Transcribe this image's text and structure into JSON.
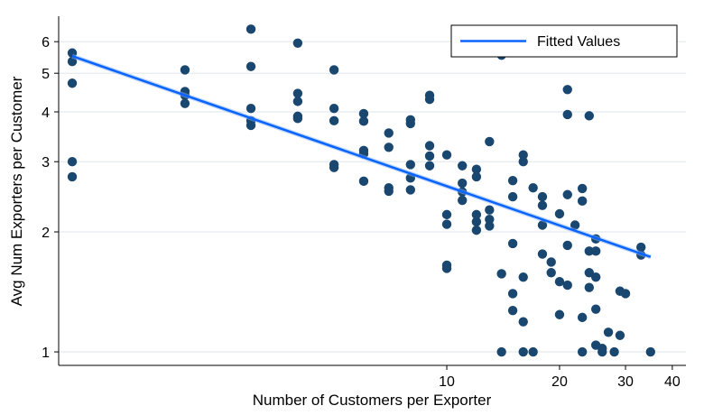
{
  "chart_data": {
    "type": "scatter",
    "title": "",
    "xlabel": "Number of Customers per Exporter",
    "ylabel": "Avg Num Exporters per Customer",
    "xscale": "log",
    "yscale": "log",
    "xlim": [
      0.92,
      43.5
    ],
    "ylim": [
      0.925,
      6.95
    ],
    "xticks": [
      10,
      20,
      30,
      40
    ],
    "xtick_labels": [
      "10",
      "20",
      "30",
      "40"
    ],
    "yticks": [
      1,
      2,
      3,
      4,
      5,
      6
    ],
    "ytick_labels": [
      "1",
      "2",
      "3",
      "4",
      "5",
      "6"
    ],
    "grid": "horizontal",
    "legend": {
      "position": "top-right",
      "entries": [
        "Fitted Values"
      ]
    },
    "colors": {
      "points": "#1a476f",
      "fit": "#0a64ff",
      "grid": "#e8eef2"
    },
    "points": [
      [
        1,
        5.62
      ],
      [
        1,
        5.35
      ],
      [
        1,
        4.72
      ],
      [
        1,
        3.0
      ],
      [
        1,
        2.75
      ],
      [
        2,
        5.1
      ],
      [
        2,
        4.5
      ],
      [
        2,
        4.4
      ],
      [
        2,
        4.2
      ],
      [
        3,
        6.45
      ],
      [
        3,
        5.2
      ],
      [
        3,
        4.08
      ],
      [
        3,
        3.8
      ],
      [
        3,
        3.7
      ],
      [
        4,
        5.95
      ],
      [
        4,
        4.45
      ],
      [
        4,
        4.25
      ],
      [
        4,
        3.9
      ],
      [
        4,
        3.85
      ],
      [
        5,
        5.1
      ],
      [
        5,
        4.08
      ],
      [
        5,
        3.8
      ],
      [
        5,
        2.95
      ],
      [
        5,
        2.9
      ],
      [
        6,
        3.96
      ],
      [
        6,
        3.79
      ],
      [
        6,
        3.2
      ],
      [
        6,
        3.14
      ],
      [
        6,
        2.68
      ],
      [
        7,
        3.54
      ],
      [
        7,
        3.26
      ],
      [
        7,
        2.58
      ],
      [
        7,
        2.53
      ],
      [
        8,
        3.82
      ],
      [
        8,
        3.74
      ],
      [
        8,
        2.95
      ],
      [
        8,
        2.73
      ],
      [
        8,
        2.55
      ],
      [
        9,
        4.4
      ],
      [
        9,
        4.3
      ],
      [
        9,
        3.29
      ],
      [
        9,
        3.1
      ],
      [
        9,
        2.93
      ],
      [
        10,
        3.12
      ],
      [
        10,
        2.21
      ],
      [
        10,
        2.09
      ],
      [
        10,
        1.65
      ],
      [
        10,
        1.62
      ],
      [
        11,
        2.93
      ],
      [
        11,
        2.65
      ],
      [
        11,
        2.52
      ],
      [
        11,
        2.4
      ],
      [
        12,
        2.87
      ],
      [
        12,
        2.75
      ],
      [
        12,
        2.21
      ],
      [
        12,
        2.12
      ],
      [
        12,
        2.02
      ],
      [
        13,
        3.37
      ],
      [
        13,
        2.27
      ],
      [
        13,
        2.15
      ],
      [
        13,
        2.07
      ],
      [
        14,
        5.55
      ],
      [
        14,
        1.57
      ],
      [
        14,
        1.0
      ],
      [
        15,
        2.69
      ],
      [
        15,
        2.45
      ],
      [
        15,
        1.87
      ],
      [
        15,
        1.4
      ],
      [
        15,
        1.27
      ],
      [
        16,
        3.12
      ],
      [
        16,
        3.0
      ],
      [
        16,
        1.54
      ],
      [
        16,
        1.19
      ],
      [
        16,
        1.0
      ],
      [
        17,
        2.58
      ],
      [
        17,
        1.0
      ],
      [
        18,
        2.45
      ],
      [
        18,
        2.33
      ],
      [
        18,
        2.08
      ],
      [
        18,
        1.76
      ],
      [
        19,
        1.68
      ],
      [
        19,
        1.58
      ],
      [
        20,
        2.22
      ],
      [
        20,
        1.5
      ],
      [
        20,
        1.24
      ],
      [
        21,
        4.55
      ],
      [
        21,
        3.94
      ],
      [
        21,
        2.48
      ],
      [
        21,
        1.85
      ],
      [
        21,
        1.47
      ],
      [
        22,
        2.08
      ],
      [
        23,
        2.57
      ],
      [
        23,
        2.39
      ],
      [
        23,
        1.22
      ],
      [
        23,
        1.0
      ],
      [
        24,
        3.91
      ],
      [
        24,
        1.79
      ],
      [
        24,
        1.58
      ],
      [
        24,
        1.45
      ],
      [
        25,
        1.92
      ],
      [
        25,
        1.79
      ],
      [
        25,
        1.54
      ],
      [
        25,
        1.28
      ],
      [
        25,
        1.04
      ],
      [
        26,
        1.02
      ],
      [
        26,
        1.0
      ],
      [
        27,
        1.12
      ],
      [
        28,
        1.0
      ],
      [
        29,
        1.42
      ],
      [
        29,
        1.1
      ],
      [
        30,
        1.4
      ],
      [
        33,
        1.83
      ],
      [
        33,
        1.75
      ],
      [
        35,
        1.0
      ]
    ],
    "fitted_line": {
      "x": [
        1,
        35
      ],
      "y": [
        5.52,
        1.73
      ]
    }
  }
}
